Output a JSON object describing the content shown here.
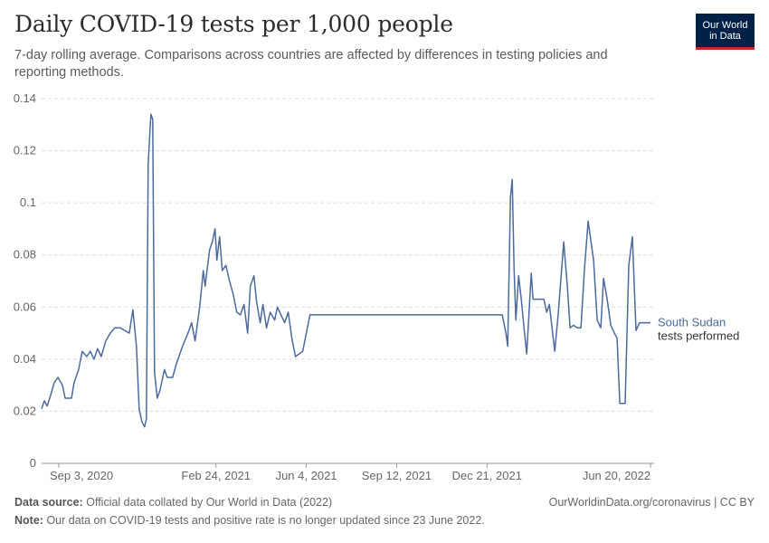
{
  "title": "Daily COVID-19 tests per 1,000 people",
  "subtitle": "7-day rolling average. Comparisons across countries are affected by differences in testing policies and reporting methods.",
  "logo": {
    "line1": "Our World",
    "line2": "in Data",
    "bg_color": "#002147",
    "accent_color": "#ce261e"
  },
  "footer": {
    "source_label": "Data source:",
    "source_text": "Official data collated by Our World in Data (2022)",
    "credit": "OurWorldinData.org/coronavirus | CC BY",
    "note_label": "Note:",
    "note_text": "Our data on COVID-19 tests and positive rate is no longer updated since 23 June 2022."
  },
  "chart_data": {
    "type": "line",
    "title": "Daily COVID-19 tests per 1,000 people",
    "xlabel": "",
    "ylabel": "",
    "xlim": [
      "2020-08-15",
      "2022-06-24"
    ],
    "ylim": [
      0,
      0.14
    ],
    "yticks": [
      0,
      0.02,
      0.04,
      0.06,
      0.08,
      0.1,
      0.12,
      0.14
    ],
    "ytick_labels": [
      "0",
      "0.02",
      "0.04",
      "0.06",
      "0.08",
      "0.1",
      "0.12",
      "0.14"
    ],
    "xticks": [
      "2020-09-03",
      "2021-02-24",
      "2021-06-04",
      "2021-09-12",
      "2021-12-21",
      "2022-06-20"
    ],
    "xtick_labels": [
      "Sep 3, 2020",
      "Feb 24, 2021",
      "Jun 4, 2021",
      "Sep 12, 2021",
      "Dec 21, 2021",
      "Jun 20, 2022"
    ],
    "grid": true,
    "legend": "end-of-line label",
    "series": [
      {
        "name": "South Sudan",
        "sublabel": "tests performed",
        "color": "#4c6a9c",
        "points": [
          [
            "2020-08-15",
            0.021
          ],
          [
            "2020-08-18",
            0.024
          ],
          [
            "2020-08-21",
            0.022
          ],
          [
            "2020-08-24",
            0.025
          ],
          [
            "2020-08-29",
            0.031
          ],
          [
            "2020-09-02",
            0.033
          ],
          [
            "2020-09-07",
            0.03
          ],
          [
            "2020-09-10",
            0.025
          ],
          [
            "2020-09-17",
            0.025
          ],
          [
            "2020-09-20",
            0.031
          ],
          [
            "2020-09-25",
            0.036
          ],
          [
            "2020-09-29",
            0.043
          ],
          [
            "2020-10-04",
            0.041
          ],
          [
            "2020-10-08",
            0.043
          ],
          [
            "2020-10-12",
            0.04
          ],
          [
            "2020-10-16",
            0.044
          ],
          [
            "2020-10-20",
            0.041
          ],
          [
            "2020-10-25",
            0.047
          ],
          [
            "2020-10-30",
            0.05
          ],
          [
            "2020-11-04",
            0.052
          ],
          [
            "2020-11-10",
            0.052
          ],
          [
            "2020-11-15",
            0.051
          ],
          [
            "2020-11-20",
            0.05
          ],
          [
            "2020-11-24",
            0.059
          ],
          [
            "2020-11-28",
            0.045
          ],
          [
            "2020-12-01",
            0.021
          ],
          [
            "2020-12-04",
            0.016
          ],
          [
            "2020-12-07",
            0.014
          ],
          [
            "2020-12-09",
            0.017
          ],
          [
            "2020-12-11",
            0.115
          ],
          [
            "2020-12-14",
            0.134
          ],
          [
            "2020-12-16",
            0.132
          ],
          [
            "2020-12-18",
            0.035
          ],
          [
            "2020-12-21",
            0.025
          ],
          [
            "2020-12-24",
            0.028
          ],
          [
            "2020-12-29",
            0.036
          ],
          [
            "2021-01-01",
            0.033
          ],
          [
            "2021-01-07",
            0.033
          ],
          [
            "2021-01-11",
            0.038
          ],
          [
            "2021-01-18",
            0.045
          ],
          [
            "2021-01-24",
            0.05
          ],
          [
            "2021-01-28",
            0.054
          ],
          [
            "2021-02-01",
            0.047
          ],
          [
            "2021-02-06",
            0.06
          ],
          [
            "2021-02-10",
            0.074
          ],
          [
            "2021-02-12",
            0.068
          ],
          [
            "2021-02-17",
            0.082
          ],
          [
            "2021-02-20",
            0.085
          ],
          [
            "2021-02-23",
            0.09
          ],
          [
            "2021-02-25",
            0.078
          ],
          [
            "2021-02-28",
            0.087
          ],
          [
            "2021-03-03",
            0.074
          ],
          [
            "2021-03-07",
            0.076
          ],
          [
            "2021-03-11",
            0.07
          ],
          [
            "2021-03-15",
            0.065
          ],
          [
            "2021-03-19",
            0.058
          ],
          [
            "2021-03-23",
            0.057
          ],
          [
            "2021-03-27",
            0.061
          ],
          [
            "2021-03-31",
            0.05
          ],
          [
            "2021-04-03",
            0.068
          ],
          [
            "2021-04-07",
            0.072
          ],
          [
            "2021-04-10",
            0.062
          ],
          [
            "2021-04-14",
            0.054
          ],
          [
            "2021-04-17",
            0.061
          ],
          [
            "2021-04-21",
            0.052
          ],
          [
            "2021-04-25",
            0.058
          ],
          [
            "2021-04-30",
            0.055
          ],
          [
            "2021-05-03",
            0.06
          ],
          [
            "2021-05-07",
            0.057
          ],
          [
            "2021-05-11",
            0.054
          ],
          [
            "2021-05-15",
            0.058
          ],
          [
            "2021-05-19",
            0.048
          ],
          [
            "2021-05-23",
            0.041
          ],
          [
            "2021-05-27",
            0.042
          ],
          [
            "2021-05-31",
            0.043
          ],
          [
            "2021-06-04",
            0.05
          ],
          [
            "2021-06-08",
            0.057
          ],
          [
            "2022-01-07",
            0.057
          ],
          [
            "2022-01-11",
            0.05
          ],
          [
            "2022-01-13",
            0.045
          ],
          [
            "2022-01-16",
            0.102
          ],
          [
            "2022-01-18",
            0.109
          ],
          [
            "2022-01-20",
            0.075
          ],
          [
            "2022-01-22",
            0.055
          ],
          [
            "2022-01-25",
            0.072
          ],
          [
            "2022-01-28",
            0.063
          ],
          [
            "2022-01-31",
            0.052
          ],
          [
            "2022-02-03",
            0.042
          ],
          [
            "2022-02-08",
            0.073
          ],
          [
            "2022-02-10",
            0.063
          ],
          [
            "2022-02-22",
            0.063
          ],
          [
            "2022-02-25",
            0.058
          ],
          [
            "2022-02-28",
            0.061
          ],
          [
            "2022-03-03",
            0.052
          ],
          [
            "2022-03-06",
            0.043
          ],
          [
            "2022-03-10",
            0.058
          ],
          [
            "2022-03-16",
            0.085
          ],
          [
            "2022-03-20",
            0.068
          ],
          [
            "2022-03-23",
            0.052
          ],
          [
            "2022-03-27",
            0.053
          ],
          [
            "2022-03-31",
            0.052
          ],
          [
            "2022-04-04",
            0.052
          ],
          [
            "2022-04-08",
            0.075
          ],
          [
            "2022-04-12",
            0.093
          ],
          [
            "2022-04-18",
            0.078
          ],
          [
            "2022-04-22",
            0.055
          ],
          [
            "2022-04-26",
            0.052
          ],
          [
            "2022-04-29",
            0.071
          ],
          [
            "2022-05-03",
            0.063
          ],
          [
            "2022-05-07",
            0.053
          ],
          [
            "2022-05-11",
            0.05
          ],
          [
            "2022-05-14",
            0.048
          ],
          [
            "2022-05-17",
            0.023
          ],
          [
            "2022-05-23",
            0.023
          ],
          [
            "2022-05-27",
            0.076
          ],
          [
            "2022-05-31",
            0.087
          ],
          [
            "2022-06-04",
            0.051
          ],
          [
            "2022-06-08",
            0.054
          ],
          [
            "2022-06-20",
            0.054
          ]
        ]
      }
    ]
  }
}
